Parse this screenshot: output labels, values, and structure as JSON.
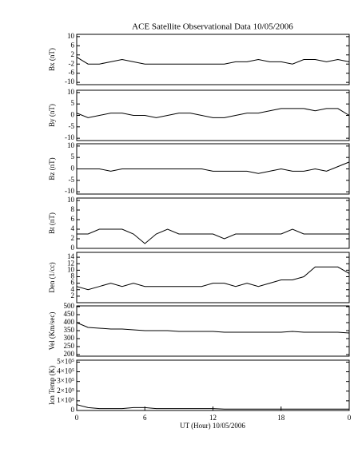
{
  "chart_data": [
    {
      "type": "line",
      "title": "ACE Satellite Observational Data   10/05/2006",
      "ylabel": "Bx (nT)",
      "color": "#000000",
      "x": [
        0,
        1,
        2,
        3,
        4,
        5,
        6,
        7,
        8,
        9,
        10,
        11,
        12,
        13,
        14,
        15,
        16,
        17,
        18,
        19,
        20,
        21,
        22,
        23,
        24
      ],
      "xlim": [
        0,
        24
      ],
      "values": [
        1,
        -2,
        -2,
        -1,
        0,
        -1,
        -2,
        -2,
        -2,
        -2,
        -2,
        -2,
        -2,
        -2,
        -1,
        -1,
        0,
        -1,
        -1,
        -2,
        0,
        0,
        -1,
        0,
        -1
      ],
      "ylim": [
        -11,
        11
      ],
      "yticks": [
        10,
        6,
        2,
        -2,
        -6,
        -10
      ]
    },
    {
      "type": "line",
      "ylabel": "By (nT)",
      "color": "#000000",
      "x": [
        0,
        1,
        2,
        3,
        4,
        5,
        6,
        7,
        8,
        9,
        10,
        11,
        12,
        13,
        14,
        15,
        16,
        17,
        18,
        19,
        20,
        21,
        22,
        23,
        24
      ],
      "xlim": [
        0,
        24
      ],
      "values": [
        1,
        -1,
        0,
        1,
        1,
        0,
        0,
        -1,
        0,
        1,
        1,
        0,
        -1,
        -1,
        0,
        1,
        1,
        2,
        3,
        3,
        3,
        2,
        3,
        3,
        0
      ],
      "ylim": [
        -11,
        11
      ],
      "yticks": [
        10,
        5,
        0,
        -5,
        -10
      ]
    },
    {
      "type": "line",
      "ylabel": "Bz (nT)",
      "color": "#000000",
      "x": [
        0,
        1,
        2,
        3,
        4,
        5,
        6,
        7,
        8,
        9,
        10,
        11,
        12,
        13,
        14,
        15,
        16,
        17,
        18,
        19,
        20,
        21,
        22,
        23,
        24
      ],
      "xlim": [
        0,
        24
      ],
      "values": [
        0,
        0,
        0,
        -1,
        0,
        0,
        0,
        0,
        0,
        0,
        0,
        0,
        -1,
        -1,
        -1,
        -1,
        -2,
        -1,
        0,
        -1,
        -1,
        0,
        -1,
        1,
        3
      ],
      "ylim": [
        -11,
        11
      ],
      "yticks": [
        10,
        5,
        0,
        -5,
        -10
      ]
    },
    {
      "type": "line",
      "ylabel": "Bt (nT)",
      "color": "#000000",
      "x": [
        0,
        1,
        2,
        3,
        4,
        5,
        6,
        7,
        8,
        9,
        10,
        11,
        12,
        13,
        14,
        15,
        16,
        17,
        18,
        19,
        20,
        21,
        22,
        23,
        24
      ],
      "xlim": [
        0,
        24
      ],
      "values": [
        3,
        3,
        4,
        4,
        4,
        3,
        1,
        3,
        4,
        3,
        3,
        3,
        3,
        2,
        3,
        3,
        3,
        3,
        3,
        4,
        3,
        3,
        3,
        3,
        3
      ],
      "ylim": [
        0,
        10.5
      ],
      "yticks": [
        10,
        8,
        6,
        4,
        2,
        0
      ]
    },
    {
      "type": "line",
      "ylabel": "Den (1/cc)",
      "color": "#000000",
      "x": [
        0,
        1,
        2,
        3,
        4,
        5,
        6,
        7,
        8,
        9,
        10,
        11,
        12,
        13,
        14,
        15,
        16,
        17,
        18,
        19,
        20,
        21,
        22,
        23,
        24
      ],
      "xlim": [
        0,
        24
      ],
      "values": [
        5,
        4,
        5,
        6,
        5,
        6,
        5,
        5,
        5,
        5,
        5,
        5,
        6,
        6,
        5,
        6,
        5,
        6,
        7,
        7,
        8,
        11,
        11,
        11,
        9
      ],
      "ylim": [
        0,
        15.5
      ],
      "yticks": [
        14,
        12,
        10,
        8,
        6,
        4,
        2
      ]
    },
    {
      "type": "line",
      "ylabel": "Vel (Km/sec)",
      "color": "#000000",
      "x": [
        0,
        1,
        2,
        3,
        4,
        5,
        6,
        7,
        8,
        9,
        10,
        11,
        12,
        13,
        14,
        15,
        16,
        17,
        18,
        19,
        20,
        21,
        22,
        23,
        24
      ],
      "xlim": [
        0,
        24
      ],
      "values": [
        400,
        370,
        365,
        360,
        360,
        355,
        350,
        350,
        350,
        345,
        345,
        345,
        345,
        340,
        340,
        340,
        340,
        340,
        340,
        345,
        340,
        340,
        340,
        340,
        335
      ],
      "ylim": [
        190,
        505
      ],
      "yticks": [
        500,
        450,
        400,
        350,
        300,
        250,
        200
      ]
    },
    {
      "type": "line",
      "ylabel": "Ion Temp (K)",
      "xlabel": "UT (Hour)   10/05/2006",
      "color": "#000000",
      "x": [
        0,
        1,
        2,
        3,
        4,
        5,
        6,
        7,
        8,
        9,
        10,
        11,
        12,
        13,
        14,
        15,
        16,
        17,
        18,
        19,
        20,
        21,
        22,
        23,
        24
      ],
      "xlim": [
        0,
        24
      ],
      "xticks": [
        0,
        6,
        12,
        18,
        {
          "value": 24,
          "label": "0"
        }
      ],
      "values": [
        60000,
        30000,
        20000,
        20000,
        20000,
        30000,
        30000,
        20000,
        20000,
        20000,
        20000,
        20000,
        20000,
        15000,
        15000,
        15000,
        15000,
        15000,
        15000,
        15000,
        15000,
        15000,
        15000,
        15000,
        15000
      ],
      "ylim": [
        0,
        520000
      ],
      "yticks": [
        {
          "value": 500000,
          "label": "5×10⁵"
        },
        {
          "value": 400000,
          "label": "4×10⁵"
        },
        {
          "value": 300000,
          "label": "3×10⁵"
        },
        {
          "value": 200000,
          "label": "2×10⁵"
        },
        {
          "value": 100000,
          "label": "1×10⁵"
        },
        0
      ]
    }
  ]
}
